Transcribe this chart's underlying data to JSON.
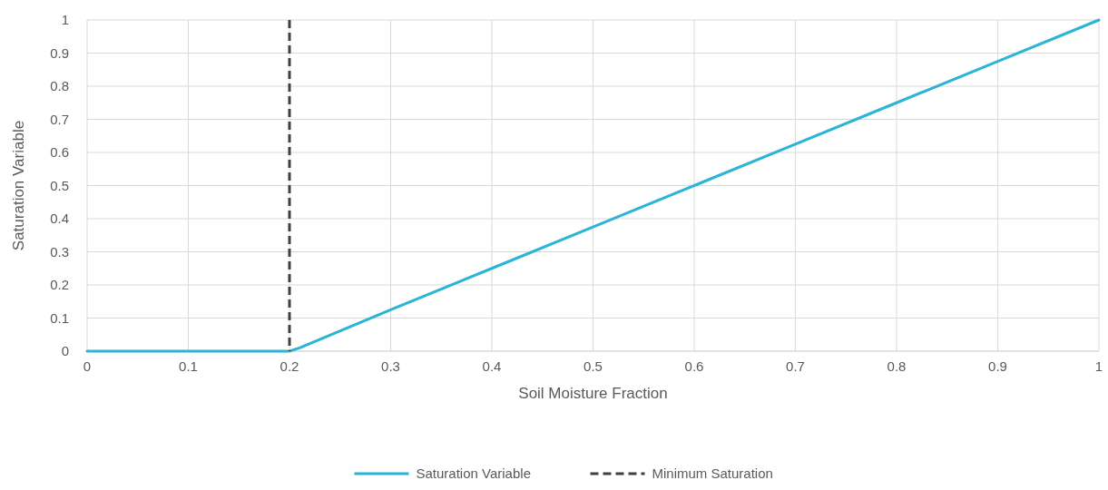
{
  "chart_data": {
    "type": "line",
    "xlabel": "Soil Moisture Fraction",
    "ylabel": "Saturation Variable",
    "series": [
      {
        "name": "Saturation Variable",
        "color": "#2ab4d6",
        "x": [
          0,
          0.1,
          0.19,
          0.2,
          0.21,
          0.3,
          0.4,
          0.5,
          0.6,
          0.7,
          0.8,
          0.9,
          1
        ],
        "values": [
          0,
          0,
          0,
          0,
          0.01,
          0.125,
          0.25,
          0.375,
          0.5,
          0.625,
          0.75,
          0.875,
          1
        ]
      }
    ],
    "ref_lines": [
      {
        "axis": "x",
        "value": 0.2,
        "label": "Minimum Saturation",
        "color": "#404040",
        "line_style": "dashed"
      }
    ],
    "xlim": [
      0,
      1
    ],
    "xticks": [
      0,
      0.1,
      0.2,
      0.3,
      0.4,
      0.5,
      0.6,
      0.7,
      0.8,
      0.9,
      1
    ],
    "ylim": [
      0,
      1
    ],
    "yticks": [
      0,
      0.1,
      0.2,
      0.3,
      0.4,
      0.5,
      0.6,
      0.7,
      0.8,
      0.9,
      1
    ],
    "grid": true,
    "legend": "bottom",
    "line_style": "solid",
    "marker": "none"
  }
}
